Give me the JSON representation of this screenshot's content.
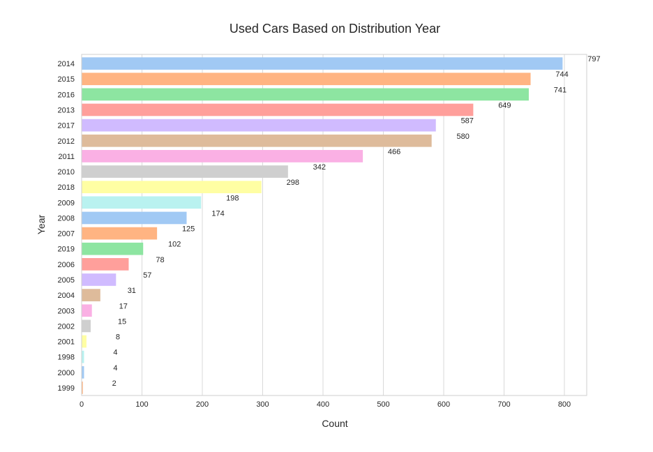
{
  "chart_data": {
    "type": "bar",
    "orientation": "horizontal",
    "title": "Used Cars Based on Distribution Year",
    "xlabel": "Count",
    "ylabel": "Year",
    "xlim": [
      0,
      837
    ],
    "xticks": [
      0,
      100,
      200,
      300,
      400,
      500,
      600,
      700,
      800
    ],
    "grid": true,
    "categories": [
      "2014",
      "2015",
      "2016",
      "2013",
      "2017",
      "2012",
      "2011",
      "2010",
      "2018",
      "2009",
      "2008",
      "2007",
      "2019",
      "2006",
      "2005",
      "2004",
      "2003",
      "2002",
      "2001",
      "1998",
      "2000",
      "1999"
    ],
    "values": [
      797,
      744,
      741,
      649,
      587,
      580,
      466,
      342,
      298,
      198,
      174,
      125,
      102,
      78,
      57,
      31,
      17,
      15,
      8,
      4,
      4,
      2
    ],
    "palette": [
      "#a1c9f4",
      "#ffb482",
      "#8de5a1",
      "#ff9f9b",
      "#d0bbff",
      "#debb9b",
      "#fab0e4",
      "#cfcfcf",
      "#fffea3",
      "#b9f2f0"
    ]
  }
}
